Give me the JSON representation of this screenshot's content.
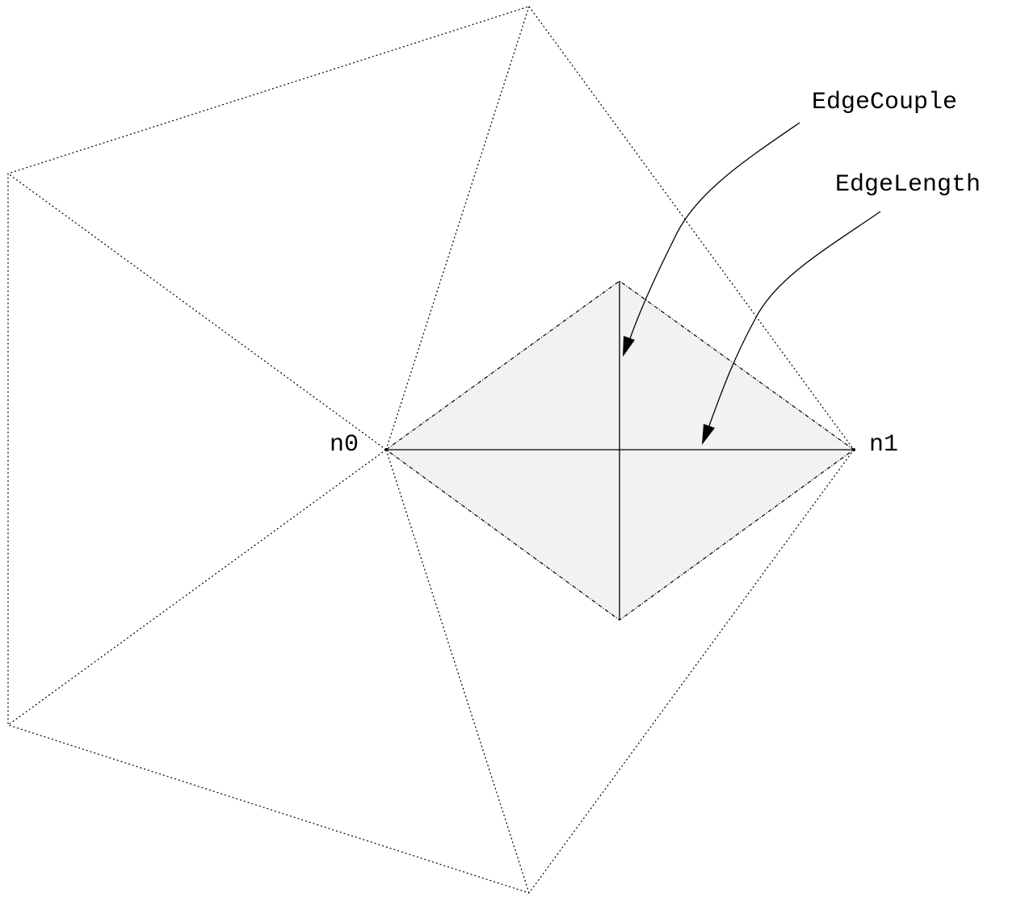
{
  "labels": {
    "edge_couple": "EdgeCouple",
    "edge_length": "EdgeLength",
    "node_n0": "n0",
    "node_n1": "n1"
  },
  "colors": {
    "line": "#000000",
    "shaded_fill": "#f2f2f2",
    "background": "#ffffff"
  }
}
